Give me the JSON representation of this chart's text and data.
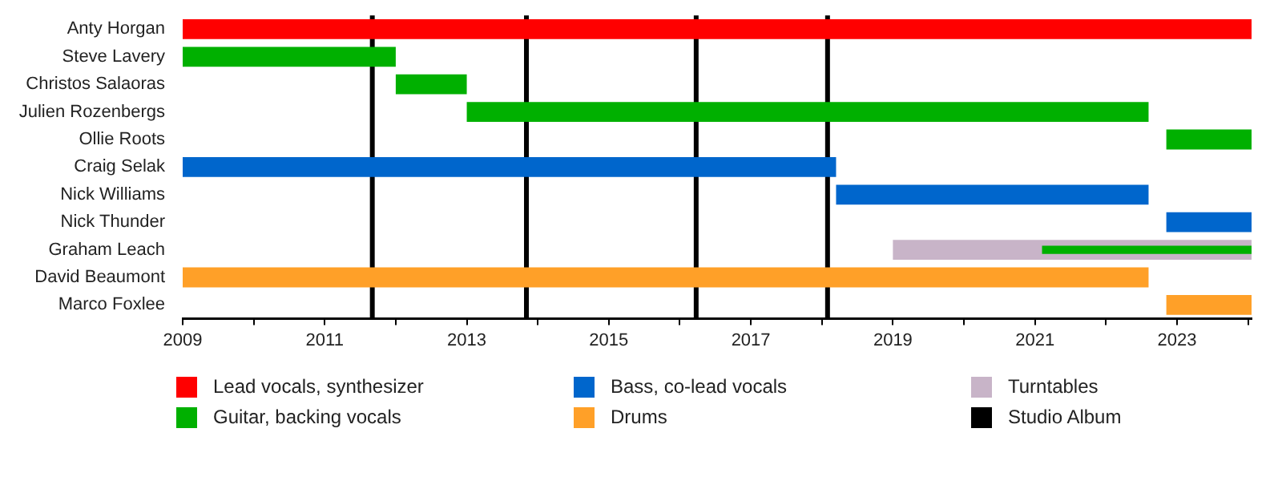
{
  "chart_data": {
    "type": "bar",
    "orientation": "horizontal",
    "categories": [
      "Anty Horgan",
      "Steve Lavery",
      "Christos Salaoras",
      "Julien Rozenbergs",
      "Ollie Roots",
      "Craig Selak",
      "Nick Williams",
      "Nick Thunder",
      "Graham Leach",
      "David Beaumont",
      "Marco Foxlee"
    ],
    "series": [
      {
        "name": "Lead vocals, synthesizer",
        "color": "#ff0000",
        "base": [
          2009,
          null,
          null,
          null,
          null,
          null,
          null,
          null,
          null,
          null,
          null
        ],
        "values": [
          15.05,
          null,
          null,
          null,
          null,
          null,
          null,
          null,
          null,
          null,
          null
        ]
      },
      {
        "name": "Guitar, backing vocals",
        "color": "#00b000",
        "base": [
          null,
          2009,
          2012.0,
          2013.0,
          2022.85,
          null,
          null,
          null,
          2021.1,
          null,
          null
        ],
        "values": [
          null,
          3.0,
          1.0,
          9.6,
          1.2,
          null,
          null,
          null,
          2.95,
          null,
          null
        ]
      },
      {
        "name": "Bass, co-lead vocals",
        "color": "#0066cc",
        "base": [
          null,
          null,
          null,
          null,
          null,
          2009,
          2018.2,
          2022.85,
          null,
          null,
          null
        ],
        "values": [
          null,
          null,
          null,
          null,
          null,
          9.2,
          4.4,
          1.2,
          null,
          null,
          null
        ]
      },
      {
        "name": "Drums",
        "color": "#ffa028",
        "base": [
          null,
          null,
          null,
          null,
          null,
          null,
          null,
          null,
          null,
          2009,
          2022.85
        ],
        "values": [
          null,
          null,
          null,
          null,
          null,
          null,
          null,
          null,
          null,
          13.6,
          1.2
        ]
      },
      {
        "name": "Turntables",
        "color": "#c8b4c8",
        "base": [
          null,
          null,
          null,
          null,
          null,
          null,
          null,
          null,
          2019.0,
          null,
          null
        ],
        "values": [
          null,
          null,
          null,
          null,
          null,
          null,
          null,
          null,
          5.05,
          null,
          null
        ]
      }
    ],
    "xlim": [
      2009,
      2024.05
    ],
    "xticks": [
      2009,
      {
        "value": 2010,
        "label": null
      },
      2011,
      {
        "value": 2012,
        "label": null
      },
      2013,
      {
        "value": 2014,
        "label": null
      },
      2015,
      {
        "value": 2016,
        "label": null
      },
      2017,
      {
        "value": 2018,
        "label": null
      },
      2019,
      {
        "value": 2020,
        "label": null
      },
      2021,
      {
        "value": 2022,
        "label": null
      },
      2023,
      {
        "value": 2024,
        "label": null
      }
    ],
    "ref_lines": [
      {
        "axis": "x",
        "value": 2011.67,
        "label": "Studio Album",
        "color": "#000000"
      },
      {
        "axis": "x",
        "value": 2013.84,
        "color": "#000000"
      },
      {
        "axis": "x",
        "value": 2016.23,
        "color": "#000000"
      },
      {
        "axis": "x",
        "value": 2018.08,
        "color": "#000000"
      }
    ],
    "grid": false,
    "legend": "bottom"
  }
}
